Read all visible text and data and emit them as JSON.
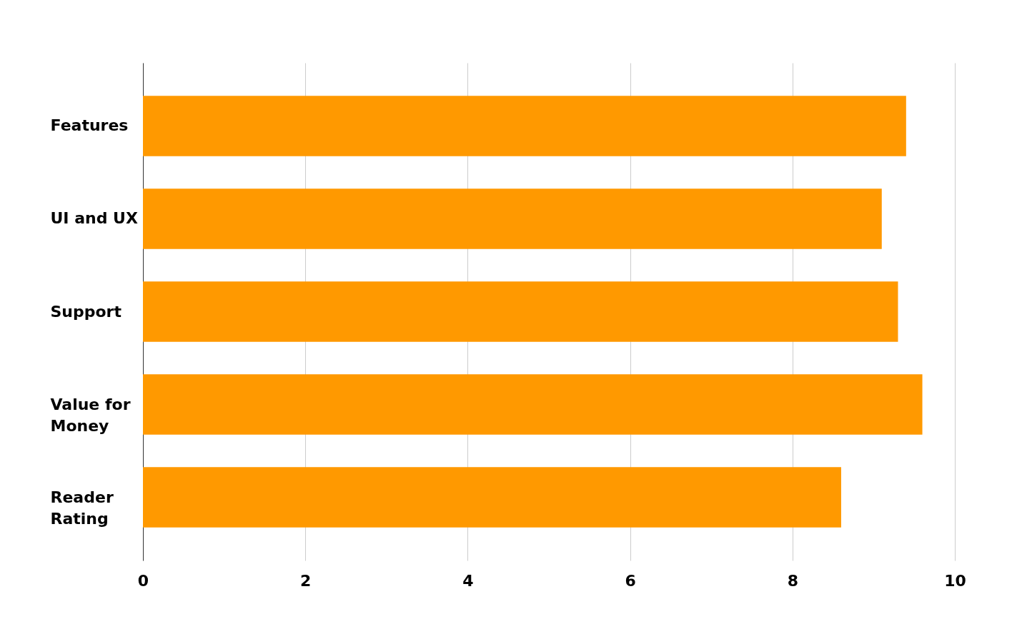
{
  "chart_data": {
    "type": "bar",
    "orientation": "horizontal",
    "categories": [
      "Features",
      "UI and UX",
      "Support",
      "Value for Money",
      "Reader Rating"
    ],
    "values": [
      9.4,
      9.1,
      9.3,
      9.6,
      8.6
    ],
    "color": "#ff9900",
    "xlim": [
      0,
      10
    ],
    "xticks": [
      0,
      2,
      4,
      6,
      8,
      10
    ],
    "grid": "x"
  }
}
